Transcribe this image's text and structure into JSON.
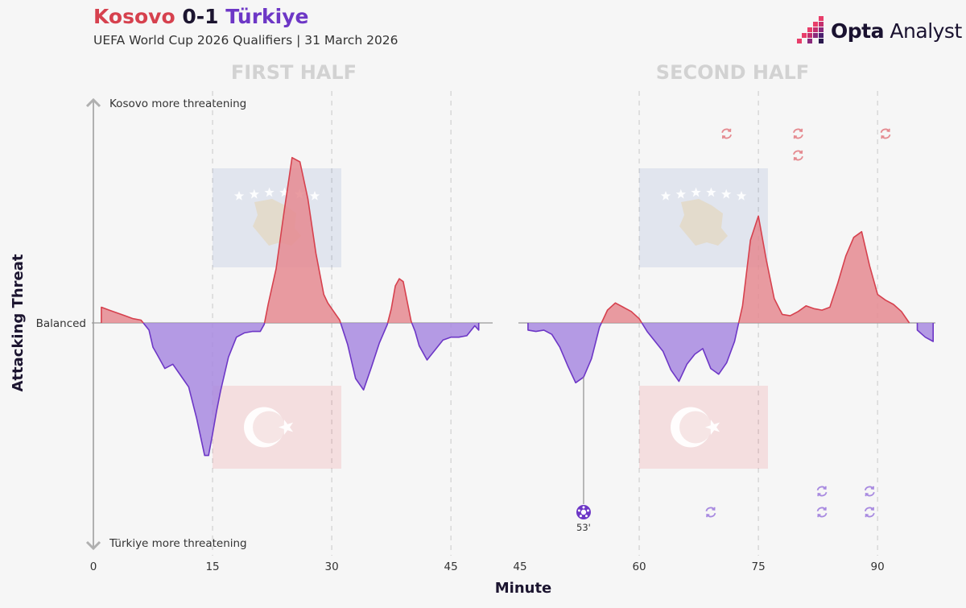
{
  "header": {
    "home_team": "Kosovo",
    "score": "0-1",
    "away_team": "Türkiye",
    "subtitle": "UEFA World Cup 2026 Qualifiers | 31 March 2026"
  },
  "brand": {
    "name_bold": "Opta",
    "name_light": "Analyst"
  },
  "colors": {
    "home": "#d6414e",
    "away": "#6d37c6",
    "home_fill": "#e58a90",
    "away_fill": "#a88ae0",
    "navy": "#1c1530",
    "halftitle": "#d2d2d2"
  },
  "chart_data": {
    "type": "area",
    "title": "Kosovo 0-1 Türkiye",
    "xlabel": "Minute",
    "ylabel": "Attacking Threat",
    "y_top_label": "Kosovo more threatening",
    "y_mid_label": "Balanced",
    "y_bottom_label": "Türkiye more threatening",
    "ylim": [
      -1,
      1
    ],
    "grid": "vertical dashed",
    "halves": [
      {
        "name": "FIRST HALF",
        "xlim": [
          0,
          49.5
        ],
        "x_ticks": [
          0,
          15,
          30,
          45
        ],
        "x": [
          0,
          1,
          2,
          3,
          4,
          5,
          6,
          7,
          7.5,
          8,
          9,
          10,
          11,
          12,
          13,
          14,
          14.5,
          15,
          15.5,
          16,
          17,
          18,
          19,
          20,
          21,
          21.5,
          22,
          23,
          24,
          25,
          26,
          27,
          28,
          29,
          29.5,
          30,
          31,
          32,
          33,
          34,
          35,
          36,
          37,
          37.5,
          38,
          38.5,
          39,
          40,
          40.5,
          41,
          42,
          43,
          44,
          45,
          46,
          47,
          48,
          48.5
        ],
        "values": [
          0,
          0.11,
          0.09,
          0.07,
          0.05,
          0.03,
          0.02,
          -0.05,
          -0.17,
          -0.22,
          -0.32,
          -0.29,
          -0.37,
          -0.45,
          -0.67,
          -0.93,
          -0.93,
          -0.78,
          -0.62,
          -0.48,
          -0.24,
          -0.1,
          -0.07,
          -0.06,
          -0.06,
          -0.01,
          0.13,
          0.38,
          0.78,
          1.16,
          1.13,
          0.87,
          0.49,
          0.2,
          0.14,
          0.1,
          0.02,
          -0.15,
          -0.39,
          -0.47,
          -0.31,
          -0.14,
          -0.01,
          0.1,
          0.26,
          0.31,
          0.29,
          0.01,
          -0.06,
          -0.16,
          -0.26,
          -0.19,
          -0.12,
          -0.1,
          -0.1,
          -0.09,
          -0.02,
          -0.05
        ]
      },
      {
        "name": "SECOND HALF",
        "xlim": [
          45,
          98
        ],
        "x_ticks": [
          45,
          60,
          75,
          90
        ],
        "x": [
          45,
          46,
          47,
          48,
          49,
          50,
          51,
          52,
          53,
          54,
          55,
          56,
          57,
          58,
          59,
          60,
          61,
          62,
          63,
          64,
          65,
          66,
          67,
          68,
          69,
          70,
          71,
          72,
          73,
          74,
          75,
          76,
          77,
          78,
          79,
          80,
          81,
          82,
          83,
          84,
          85,
          86,
          87,
          88,
          89,
          90,
          91,
          92,
          93,
          94,
          95,
          96,
          97
        ],
        "values": [
          0,
          -0.05,
          -0.06,
          -0.05,
          -0.08,
          -0.17,
          -0.3,
          -0.42,
          -0.38,
          -0.25,
          -0.03,
          0.09,
          0.14,
          0.11,
          0.08,
          0.03,
          -0.06,
          -0.13,
          -0.2,
          -0.33,
          -0.41,
          -0.29,
          -0.22,
          -0.18,
          -0.32,
          -0.36,
          -0.28,
          -0.13,
          0.12,
          0.58,
          0.75,
          0.44,
          0.17,
          0.06,
          0.05,
          0.08,
          0.12,
          0.1,
          0.09,
          0.11,
          0.28,
          0.47,
          0.6,
          0.64,
          0.4,
          0.2,
          0.16,
          0.13,
          0.08,
          0,
          -0.05,
          -0.1,
          -0.13
        ]
      }
    ],
    "annotations": {
      "goal": {
        "minute": 53,
        "label": "53'",
        "team": "Türkiye"
      },
      "home_substitutions": [
        {
          "minute": 71,
          "count": 1
        },
        {
          "minute": 80,
          "count": 2
        },
        {
          "minute": 91,
          "count": 1
        }
      ],
      "away_substitutions": [
        {
          "minute": 69,
          "count": 1
        },
        {
          "minute": 83,
          "count": 2
        },
        {
          "minute": 89,
          "count": 2
        }
      ]
    }
  }
}
